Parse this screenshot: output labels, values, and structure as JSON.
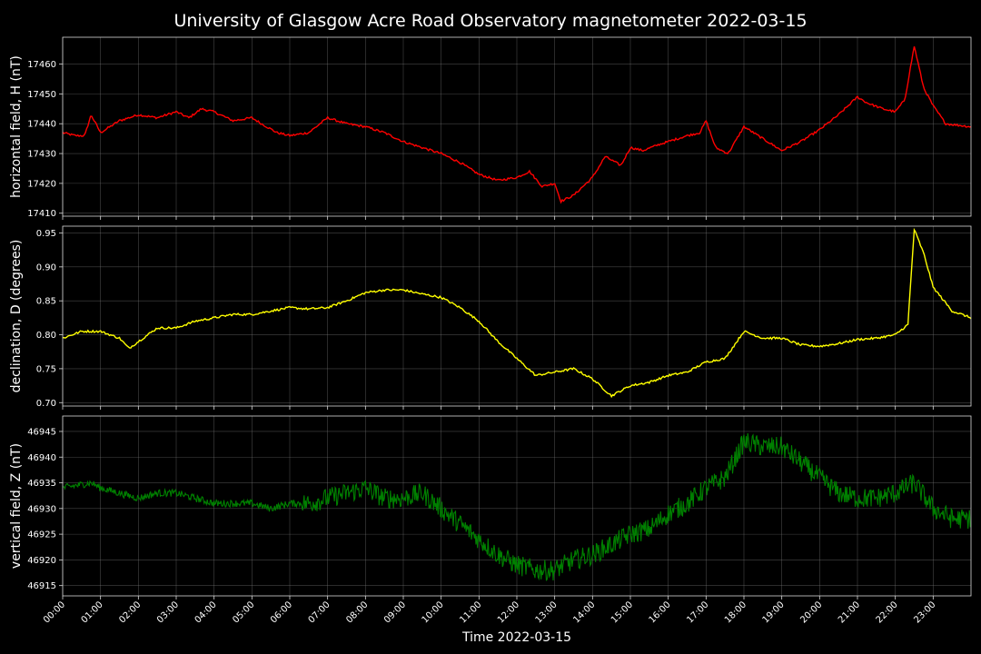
{
  "chart_data": {
    "title": "University of Glasgow Acre Road Observatory magnetometer 2022-03-15",
    "xlabel": "Time 2022-03-15",
    "x_tick_labels": [
      "00:00",
      "01:00",
      "02:00",
      "03:00",
      "04:00",
      "05:00",
      "06:00",
      "07:00",
      "08:00",
      "09:00",
      "10:00",
      "11:00",
      "12:00",
      "13:00",
      "14:00",
      "15:00",
      "16:00",
      "17:00",
      "18:00",
      "19:00",
      "20:00",
      "21:00",
      "22:00",
      "23:00"
    ],
    "xlim": [
      "2022-03-15 00:00",
      "2022-03-15 24:00"
    ],
    "grid": true,
    "panels": [
      {
        "type": "line",
        "ylabel": "horizontal field, H (nT)",
        "color": "#ff0000",
        "ylim": [
          17409,
          17469
        ],
        "yticks": [
          17410,
          17420,
          17430,
          17440,
          17450,
          17460
        ],
        "x": [
          "00:00",
          "00:20",
          "00:35",
          "00:45",
          "01:00",
          "01:30",
          "02:00",
          "02:30",
          "03:00",
          "03:20",
          "03:40",
          "04:00",
          "04:30",
          "05:00",
          "05:15",
          "05:40",
          "06:00",
          "06:30",
          "07:00",
          "07:30",
          "08:00",
          "08:30",
          "09:00",
          "09:30",
          "10:00",
          "10:30",
          "11:00",
          "11:30",
          "12:00",
          "12:20",
          "12:40",
          "13:00",
          "13:10",
          "13:30",
          "14:00",
          "14:20",
          "14:45",
          "15:00",
          "15:20",
          "15:45",
          "16:00",
          "16:30",
          "16:50",
          "17:00",
          "17:15",
          "17:35",
          "18:00",
          "18:30",
          "19:00",
          "19:30",
          "20:00",
          "20:30",
          "21:00",
          "21:15",
          "21:40",
          "22:00",
          "22:15",
          "22:30",
          "22:45",
          "23:00",
          "23:20",
          "24:00"
        ],
        "values": [
          17437,
          17436,
          17436,
          17443,
          17437,
          17441,
          17443,
          17442,
          17444,
          17442,
          17445,
          17444,
          17441,
          17442,
          17440,
          17437,
          17436,
          17437,
          17442,
          17440,
          17439,
          17437,
          17434,
          17432,
          17430,
          17427,
          17423,
          17421,
          17422,
          17424,
          17419,
          17420,
          17414,
          17416,
          17422,
          17429,
          17426,
          17432,
          17431,
          17433,
          17434,
          17436,
          17437,
          17441,
          17432,
          17430,
          17439,
          17435,
          17431,
          17434,
          17438,
          17443,
          17449,
          17447,
          17445,
          17444,
          17448,
          17466,
          17452,
          17446,
          17440,
          17439
        ]
      },
      {
        "type": "line",
        "ylabel": "declination, D (degrees)",
        "color": "#ffff00",
        "ylim": [
          0.695,
          0.96
        ],
        "yticks": [
          0.7,
          0.75,
          0.8,
          0.85,
          0.9,
          0.95
        ],
        "x": [
          "00:00",
          "00:30",
          "01:00",
          "01:30",
          "01:45",
          "02:00",
          "02:30",
          "03:00",
          "03:30",
          "04:00",
          "04:30",
          "05:00",
          "05:30",
          "06:00",
          "06:30",
          "07:00",
          "07:30",
          "08:00",
          "08:30",
          "09:00",
          "09:30",
          "10:00",
          "10:30",
          "11:00",
          "11:30",
          "12:00",
          "12:30",
          "13:00",
          "13:30",
          "14:00",
          "14:30",
          "15:00",
          "15:30",
          "16:00",
          "16:30",
          "17:00",
          "17:30",
          "18:00",
          "18:30",
          "19:00",
          "19:30",
          "20:00",
          "20:30",
          "21:00",
          "21:30",
          "22:00",
          "22:20",
          "22:30",
          "22:45",
          "23:00",
          "23:30",
          "24:00"
        ],
        "values": [
          0.795,
          0.805,
          0.805,
          0.795,
          0.78,
          0.79,
          0.81,
          0.81,
          0.82,
          0.825,
          0.83,
          0.83,
          0.835,
          0.84,
          0.838,
          0.84,
          0.85,
          0.862,
          0.866,
          0.866,
          0.86,
          0.855,
          0.84,
          0.82,
          0.79,
          0.765,
          0.74,
          0.745,
          0.75,
          0.735,
          0.71,
          0.725,
          0.73,
          0.74,
          0.745,
          0.76,
          0.765,
          0.805,
          0.795,
          0.795,
          0.785,
          0.783,
          0.787,
          0.793,
          0.795,
          0.8,
          0.815,
          0.955,
          0.92,
          0.87,
          0.835,
          0.825
        ]
      },
      {
        "type": "line",
        "ylabel": "vertical field, Z (nT)",
        "color": "#008000",
        "ylim": [
          46913,
          46948
        ],
        "yticks": [
          46915,
          46920,
          46925,
          46930,
          46935,
          46940,
          46945
        ],
        "x": [
          "00:00",
          "00:45",
          "01:00",
          "01:30",
          "02:00",
          "02:30",
          "03:00",
          "03:30",
          "04:00",
          "04:30",
          "05:00",
          "05:30",
          "06:00",
          "06:30",
          "07:00",
          "07:30",
          "08:00",
          "08:30",
          "09:00",
          "09:30",
          "10:00",
          "10:30",
          "11:00",
          "11:30",
          "12:00",
          "12:30",
          "13:00",
          "13:30",
          "14:00",
          "14:30",
          "15:00",
          "15:30",
          "16:00",
          "16:30",
          "17:00",
          "17:30",
          "18:00",
          "18:30",
          "19:00",
          "19:30",
          "20:00",
          "20:30",
          "21:00",
          "21:30",
          "22:00",
          "22:30",
          "23:00",
          "23:30",
          "24:00"
        ],
        "values": [
          46934,
          46935,
          46934,
          46933,
          46932,
          46933,
          46933,
          46932,
          46931,
          46931,
          46931,
          46930,
          46931,
          46931,
          46932,
          46933,
          46934,
          46932,
          46932,
          46933,
          46930,
          46927,
          46924,
          46921,
          46919,
          46918,
          46918,
          46920,
          46921,
          46923,
          46925,
          46926,
          46929,
          46931,
          46934,
          46936,
          46943,
          46942,
          46942,
          46939,
          46936,
          46933,
          46932,
          46932,
          46933,
          46935,
          46930,
          46928,
          46928
        ],
        "noise_amplitude": 2.0
      }
    ]
  }
}
